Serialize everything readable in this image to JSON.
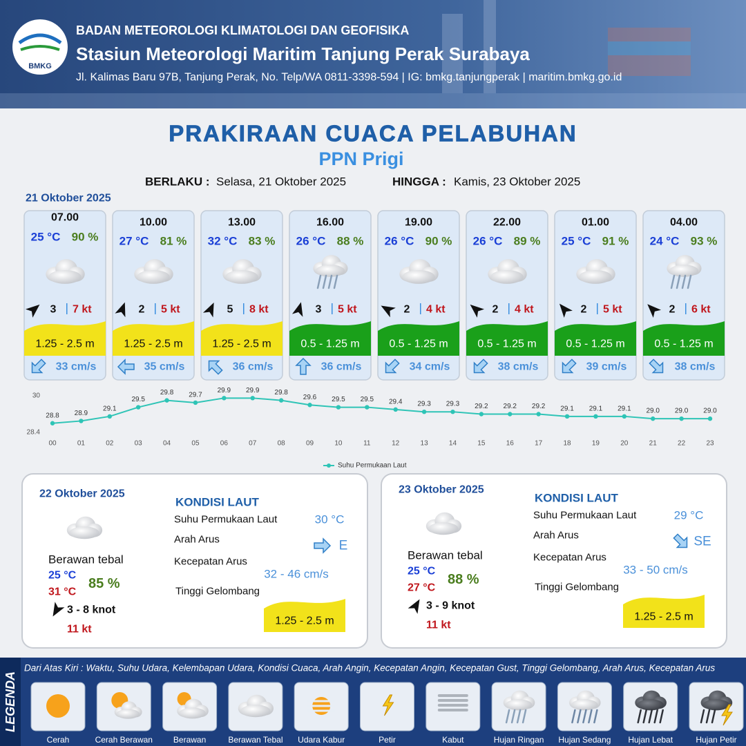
{
  "header": {
    "logo": "BMKG",
    "org": "BADAN METEOROLOGI KLIMATOLOGI DAN GEOFISIKA",
    "station": "Stasiun Meteorologi Maritim Tanjung Perak Surabaya",
    "address": "Jl. Kalimas Baru 97B, Tanjung Perak, No. Telp/WA 0811-3398-594 | IG: bmkg.tanjungperak | maritim.bmkg.go.id"
  },
  "title": "PRAKIRAAN CUACA PELABUHAN",
  "subtitle": "PPN Prigi",
  "validity": {
    "from_label": "BERLAKU :",
    "from": "Selasa, 21 Oktober 2025",
    "to_label": "HINGGA :",
    "to": "Kamis, 23 Oktober 2025"
  },
  "day1": {
    "date": "21 Oktober 2025",
    "forecasts": [
      {
        "time": "07.00",
        "temp": "25 °C",
        "humidity": "90 %",
        "condition": "Berawan Tebal",
        "wind": "3",
        "gust": "7 kt",
        "wave": "1.25 - 2.5 m",
        "wave_color": "#f2e21a",
        "current": "33 cm/s"
      },
      {
        "time": "10.00",
        "temp": "27 °C",
        "humidity": "81 %",
        "condition": "Berawan Tebal",
        "wind": "2",
        "gust": "5 kt",
        "wave": "1.25 - 2.5 m",
        "wave_color": "#f2e21a",
        "current": "35 cm/s"
      },
      {
        "time": "13.00",
        "temp": "32 °C",
        "humidity": "83 %",
        "condition": "Berawan Tebal",
        "wind": "5",
        "gust": "8 kt",
        "wave": "1.25 - 2.5 m",
        "wave_color": "#f2e21a",
        "current": "36 cm/s"
      },
      {
        "time": "16.00",
        "temp": "26 °C",
        "humidity": "88 %",
        "condition": "Hujan Ringan",
        "wind": "3",
        "gust": "5 kt",
        "wave": "0.5 - 1.25 m",
        "wave_color": "#1aa01a",
        "current": "36 cm/s"
      },
      {
        "time": "19.00",
        "temp": "26 °C",
        "humidity": "90 %",
        "condition": "Berawan Tebal",
        "wind": "2",
        "gust": "4 kt",
        "wave": "0.5 - 1.25 m",
        "wave_color": "#1aa01a",
        "current": "34 cm/s"
      },
      {
        "time": "22.00",
        "temp": "26 °C",
        "humidity": "89 %",
        "condition": "Berawan Tebal",
        "wind": "2",
        "gust": "4 kt",
        "wave": "0.5 - 1.25 m",
        "wave_color": "#1aa01a",
        "current": "38 cm/s"
      },
      {
        "time": "01.00",
        "temp": "25 °C",
        "humidity": "91 %",
        "condition": "Berawan Tebal",
        "wind": "2",
        "gust": "5 kt",
        "wave": "0.5 - 1.25 m",
        "wave_color": "#1aa01a",
        "current": "39 cm/s"
      },
      {
        "time": "04.00",
        "temp": "24 °C",
        "humidity": "93 %",
        "condition": "Hujan Ringan",
        "wind": "2",
        "gust": "6 kt",
        "wave": "0.5 - 1.25 m",
        "wave_color": "#1aa01a",
        "current": "38 cm/s"
      }
    ]
  },
  "sst_chart": {
    "type": "line",
    "categories": [
      "00",
      "01",
      "02",
      "03",
      "04",
      "05",
      "06",
      "07",
      "08",
      "09",
      "10",
      "11",
      "12",
      "13",
      "14",
      "15",
      "16",
      "17",
      "18",
      "19",
      "20",
      "21",
      "22",
      "23"
    ],
    "series": [
      {
        "name": "Suhu Permukaan Laut",
        "color": "#2ec4b6",
        "values": [
          28.8,
          28.9,
          29.1,
          29.5,
          29.8,
          29.7,
          29.9,
          29.9,
          29.8,
          29.6,
          29.5,
          29.5,
          29.4,
          29.3,
          29.3,
          29.2,
          29.2,
          29.2,
          29.1,
          29.1,
          29.1,
          29.0,
          29.0,
          29.0
        ],
        "value_labels": [
          "28.8",
          "28.9",
          "29.1",
          "29.5",
          "29.8",
          "29.7",
          "29.9",
          "29.9",
          "29.8",
          "29.6",
          "29.5",
          "29.5",
          "29.4",
          "29.3",
          "29.3",
          "29.2",
          "29.2",
          "29.2",
          "29.1",
          "29.1",
          "29.1",
          "29.0",
          "29.0",
          "29.0"
        ]
      }
    ],
    "ylim": [
      28.4,
      30
    ],
    "yticks": [
      28.4,
      30
    ]
  },
  "days": [
    {
      "date": "22 Oktober 2025",
      "condition": "Berawan tebal",
      "temp_min": "25 °C",
      "temp_max": "31 °C",
      "humidity": "85 %",
      "wind": "3  - 8 knot",
      "gust": "11 kt",
      "sea_title": "KONDISI LAUT",
      "sst_label": "Suhu Permukaan Laut",
      "sst": "30 °C",
      "dir_label": "Arah Arus",
      "dir": "E",
      "speed_label": "Kecepatan Arus",
      "speed": "32  - 46 cm/s",
      "wave_label": "Tinggi Gelombang",
      "wave": "1.25 - 2.5 m",
      "wave_color": "#f2e21a"
    },
    {
      "date": "23 Oktober 2025",
      "condition": "Berawan tebal",
      "temp_min": "25 °C",
      "temp_max": "27 °C",
      "humidity": "88 %",
      "wind": "3  - 9 knot",
      "gust": "11 kt",
      "sea_title": "KONDISI LAUT",
      "sst_label": "Suhu Permukaan Laut",
      "sst": "29 °C",
      "dir_label": "Arah Arus",
      "dir": "SE",
      "speed_label": "Kecepatan Arus",
      "speed": "33 - 50 cm/s",
      "wave_label": "Tinggi Gelombang",
      "wave": "1.25 - 2.5 m",
      "wave_color": "#f2e21a"
    }
  ],
  "legend": {
    "title": "LEGENDA",
    "description": "Dari Atas Kiri : Waktu, Suhu Udara, Kelembapan Udara, Kondisi Cuaca, Arah Angin, Kecepatan Angin, Kecepatan Gust, Tinggi Gelombang, Arah Arus, Kecepatan Arus",
    "items": [
      "Cerah",
      "Cerah Berawan",
      "Berawan",
      "Berawan Tebal",
      "Udara Kabur",
      "Petir",
      "Kabut",
      "Hujan Ringan",
      "Hujan Sedang",
      "Hujan Lebat",
      "Hujan Petir"
    ]
  }
}
